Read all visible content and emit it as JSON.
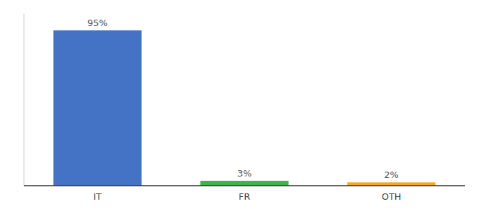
{
  "chart_data": {
    "type": "bar",
    "categories": [
      "IT",
      "FR",
      "OTH"
    ],
    "values": [
      95,
      3,
      2
    ],
    "value_labels": [
      "95%",
      "3%",
      "2%"
    ],
    "colors": [
      "#4472c4",
      "#3cb54a",
      "#f5a623"
    ],
    "ylim": [
      0,
      105
    ],
    "data_labels": true,
    "tick_labels": "x",
    "grid": false
  }
}
